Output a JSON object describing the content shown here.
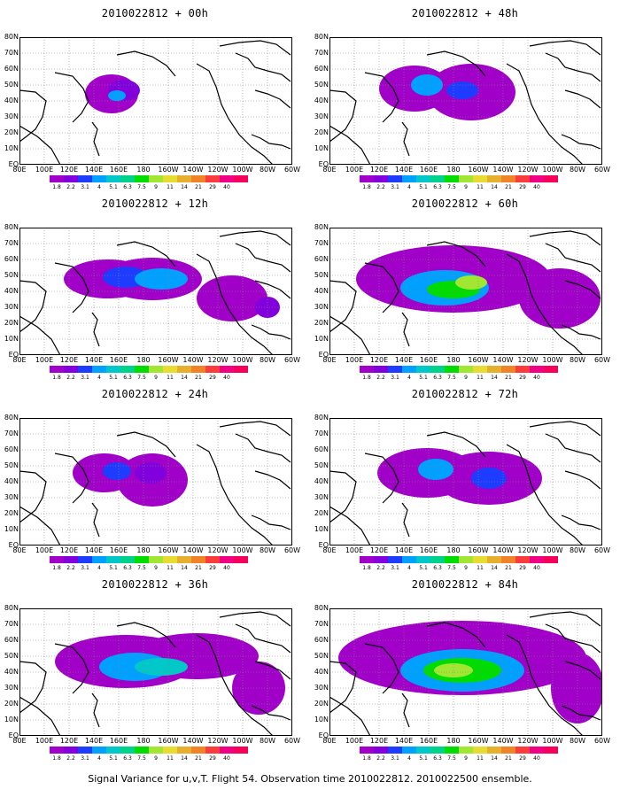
{
  "panels": [
    {
      "title": "2010022812 + 00h",
      "level": 0
    },
    {
      "title": "2010022812 + 48h",
      "level": 4
    },
    {
      "title": "2010022812 + 12h",
      "level": 1
    },
    {
      "title": "2010022812 + 60h",
      "level": 5
    },
    {
      "title": "2010022812 + 24h",
      "level": 2
    },
    {
      "title": "2010022812 + 72h",
      "level": 6
    },
    {
      "title": "2010022812 + 36h",
      "level": 3
    },
    {
      "title": "2010022812 + 84h",
      "level": 7
    }
  ],
  "lat_labels": [
    "80N",
    "70N",
    "60N",
    "50N",
    "40N",
    "30N",
    "20N",
    "10N",
    "EQ"
  ],
  "lon_labels": [
    "80E",
    "100E",
    "120E",
    "140E",
    "160E",
    "180",
    "160W",
    "140W",
    "120W",
    "100W",
    "80W",
    "60W"
  ],
  "colorbar": {
    "labels": [
      "1.8",
      "2.2",
      "3.1",
      "4",
      "5.1",
      "6.3",
      "7.5",
      "9",
      "11",
      "14",
      "21",
      "29",
      "40"
    ],
    "colors": [
      "#a000c8",
      "#8200dc",
      "#1e3cff",
      "#00a0ff",
      "#00c8c8",
      "#00d28c",
      "#00dc00",
      "#a0e632",
      "#e6dc32",
      "#e6af2d",
      "#f08228",
      "#fa3c3c",
      "#f00082"
    ]
  },
  "caption": "Signal Variance for u,v,T. Flight 54. Observation time 2010022812. 2010022500 ensemble."
}
